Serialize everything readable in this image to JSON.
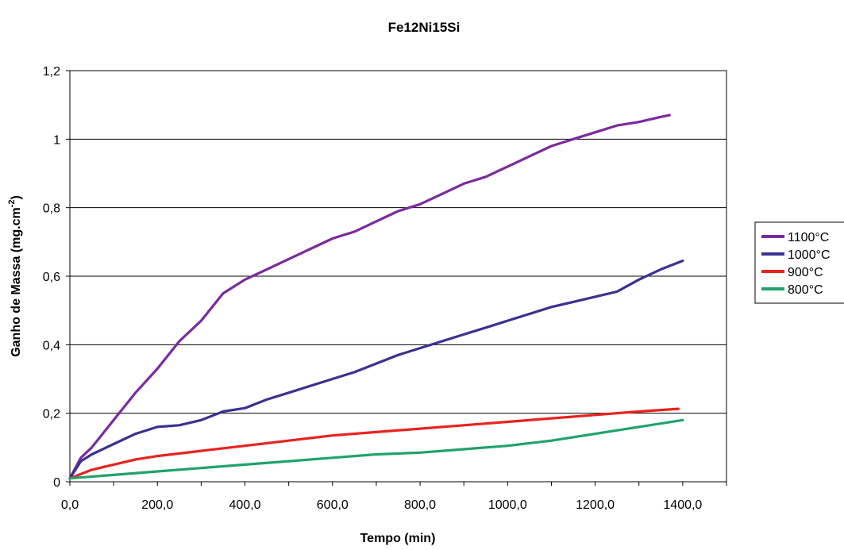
{
  "chart_data": {
    "type": "line",
    "title": "Fe12Ni15Si",
    "xlabel": "Tempo (min)",
    "ylabel_main": "Ganho de Massa (mg.cm",
    "ylabel_sup": "-2",
    "ylabel_end": ")",
    "xlim": [
      0,
      1500
    ],
    "ylim": [
      0,
      1.2
    ],
    "x_ticks": [
      0,
      200,
      400,
      600,
      800,
      1000,
      1200,
      1400
    ],
    "x_tick_labels": [
      "0,0",
      "200,0",
      "400,0",
      "600,0",
      "800,0",
      "1000,0",
      "1200,0",
      "1400,0"
    ],
    "y_ticks": [
      0,
      0.2,
      0.4,
      0.6,
      0.8,
      1,
      1.2
    ],
    "y_tick_labels": [
      "0",
      "0,2",
      "0,4",
      "0,6",
      "0,8",
      "1",
      "1,2"
    ],
    "grid": "horizontal",
    "legend_position": "right",
    "series": [
      {
        "name": "1100°C",
        "color": "#7B2A9E",
        "x": [
          0,
          25,
          50,
          75,
          100,
          150,
          200,
          250,
          300,
          350,
          400,
          450,
          500,
          550,
          600,
          650,
          700,
          750,
          800,
          850,
          900,
          950,
          1000,
          1050,
          1100,
          1150,
          1200,
          1250,
          1300,
          1350,
          1370
        ],
        "y": [
          0.01,
          0.07,
          0.1,
          0.14,
          0.18,
          0.26,
          0.33,
          0.41,
          0.47,
          0.55,
          0.59,
          0.62,
          0.65,
          0.68,
          0.71,
          0.73,
          0.76,
          0.79,
          0.81,
          0.84,
          0.87,
          0.89,
          0.92,
          0.95,
          0.98,
          1.0,
          1.02,
          1.04,
          1.05,
          1.065,
          1.07
        ]
      },
      {
        "name": "1000°C",
        "color": "#3A3191",
        "x": [
          0,
          25,
          50,
          100,
          150,
          200,
          250,
          300,
          350,
          400,
          450,
          500,
          550,
          600,
          650,
          700,
          750,
          800,
          850,
          900,
          950,
          1000,
          1050,
          1100,
          1150,
          1200,
          1250,
          1300,
          1350,
          1400
        ],
        "y": [
          0.01,
          0.06,
          0.08,
          0.11,
          0.14,
          0.16,
          0.165,
          0.18,
          0.205,
          0.215,
          0.24,
          0.26,
          0.28,
          0.3,
          0.32,
          0.345,
          0.37,
          0.39,
          0.41,
          0.43,
          0.45,
          0.47,
          0.49,
          0.51,
          0.525,
          0.54,
          0.555,
          0.59,
          0.62,
          0.645
        ]
      },
      {
        "name": "900°C",
        "color": "#E8231E",
        "x": [
          0,
          50,
          100,
          150,
          200,
          300,
          400,
          500,
          600,
          700,
          800,
          900,
          1000,
          1100,
          1200,
          1300,
          1390
        ],
        "y": [
          0.01,
          0.035,
          0.05,
          0.065,
          0.075,
          0.09,
          0.105,
          0.12,
          0.135,
          0.145,
          0.155,
          0.165,
          0.175,
          0.185,
          0.195,
          0.205,
          0.213
        ]
      },
      {
        "name": "800°C",
        "color": "#1FA36B",
        "x": [
          0,
          100,
          200,
          300,
          400,
          500,
          600,
          700,
          800,
          900,
          1000,
          1100,
          1200,
          1300,
          1400
        ],
        "y": [
          0.01,
          0.02,
          0.03,
          0.04,
          0.05,
          0.06,
          0.07,
          0.08,
          0.085,
          0.095,
          0.105,
          0.12,
          0.14,
          0.16,
          0.18
        ]
      }
    ]
  }
}
